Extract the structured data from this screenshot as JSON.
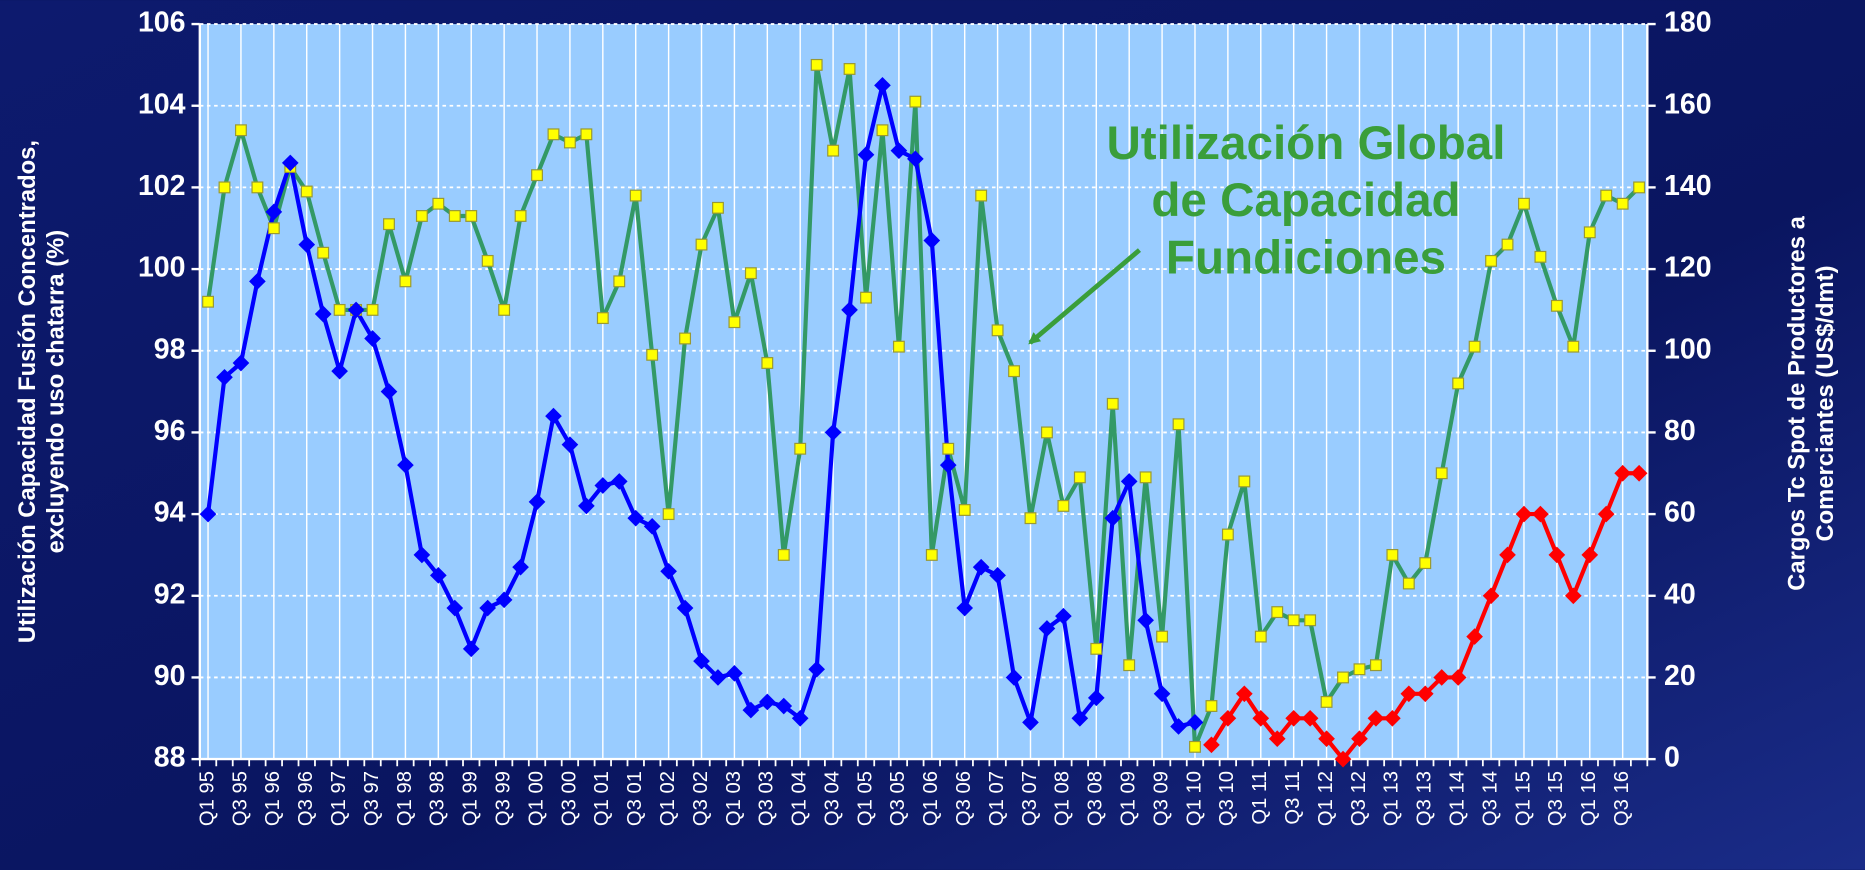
{
  "chart_data": {
    "type": "line",
    "categories": [
      "Q1 95",
      null,
      "Q3 95",
      null,
      "Q1 96",
      null,
      "Q3 96",
      null,
      "Q1 97",
      null,
      "Q3 97",
      null,
      "Q1 98",
      null,
      "Q3 98",
      null,
      "Q1 99",
      null,
      "Q3 99",
      null,
      "Q1 00",
      null,
      "Q3 00",
      null,
      "Q1 01",
      null,
      "Q3 01",
      null,
      "Q1 02",
      null,
      "Q3 02",
      null,
      "Q1 03",
      null,
      "Q3 03",
      null,
      "Q1 04",
      null,
      "Q3 04",
      null,
      "Q1 05",
      null,
      "Q3 05",
      null,
      "Q1 06",
      null,
      "Q3 06",
      null,
      "Q1 07",
      null,
      "Q3 07",
      null,
      "Q1 08",
      null,
      "Q3 08",
      null,
      "Q1 09",
      null,
      "Q3 09",
      null,
      "Q1 10",
      null,
      "Q3 10",
      null,
      "Q1 11",
      null,
      "Q3 11",
      null,
      "Q1 12",
      null,
      "Q3 12",
      null,
      "Q1 13",
      null,
      "Q3 13",
      null,
      "Q1 14",
      null,
      "Q3 14",
      null,
      "Q1 15",
      null,
      "Q3 15",
      null,
      "Q1 16",
      null,
      "Q3 16",
      null
    ],
    "series": [
      {
        "color": "#339966",
        "marker_color": "#ffff00",
        "marker": "square",
        "axis": "y",
        "values": [
          99.2,
          102.0,
          103.4,
          102.0,
          101.0,
          102.5,
          101.9,
          100.4,
          99.0,
          99.0,
          99.0,
          101.1,
          99.7,
          101.3,
          101.6,
          101.3,
          101.3,
          100.2,
          99.0,
          101.3,
          102.3,
          103.3,
          103.1,
          103.3,
          98.8,
          99.7,
          101.8,
          97.9,
          94.0,
          98.3,
          100.6,
          101.5,
          98.7,
          99.9,
          97.7,
          93.0,
          95.6,
          105.0,
          102.9,
          104.9,
          99.3,
          103.4,
          98.1,
          104.1,
          93.0,
          95.6,
          94.1,
          101.8,
          98.5,
          97.5,
          93.9,
          96.0,
          94.2,
          94.9,
          90.7,
          96.7,
          90.3,
          94.9,
          91.0,
          96.2,
          88.3,
          89.3,
          93.5,
          94.8,
          91.0,
          91.6,
          91.4,
          91.4,
          89.4,
          90.0,
          90.2,
          90.3,
          93.0,
          92.3,
          92.8,
          95.0,
          97.2,
          98.1,
          100.2,
          100.6,
          101.6,
          100.3,
          99.1,
          98.1,
          100.9,
          101.8,
          101.6,
          102.0
        ]
      },
      {
        "color": "#0000ff",
        "marker": "diamond",
        "axis": "y2",
        "values": [
          60,
          93.5,
          97,
          117,
          134,
          146,
          126,
          109,
          95,
          110,
          103,
          90,
          72,
          50,
          45,
          37,
          27,
          37,
          39,
          47,
          63,
          84,
          77,
          62,
          67,
          68,
          59,
          57,
          46,
          37,
          24,
          20,
          21,
          12,
          14,
          13,
          10,
          22,
          80,
          110,
          148,
          165,
          149,
          147,
          127,
          72,
          37,
          47,
          45,
          20,
          9,
          32,
          35,
          10,
          15,
          59,
          68,
          34,
          16,
          8,
          9,
          null,
          null,
          null,
          null,
          null,
          null,
          null,
          null,
          null,
          null,
          null,
          null,
          null,
          null,
          null,
          null,
          null,
          null,
          null,
          null,
          null,
          null,
          null,
          null,
          null,
          null,
          null
        ]
      },
      {
        "color": "#ff0000",
        "marker": "diamond",
        "axis": "y2",
        "values": [
          null,
          null,
          null,
          null,
          null,
          null,
          null,
          null,
          null,
          null,
          null,
          null,
          null,
          null,
          null,
          null,
          null,
          null,
          null,
          null,
          null,
          null,
          null,
          null,
          null,
          null,
          null,
          null,
          null,
          null,
          null,
          null,
          null,
          null,
          null,
          null,
          null,
          null,
          null,
          null,
          null,
          null,
          null,
          null,
          null,
          null,
          null,
          null,
          null,
          null,
          null,
          null,
          null,
          null,
          null,
          null,
          null,
          null,
          null,
          null,
          null,
          3.5,
          10,
          16,
          10,
          5,
          10,
          10,
          5,
          0,
          5,
          10,
          10,
          16,
          16,
          20,
          20,
          30,
          40,
          50,
          60,
          60,
          50,
          40,
          50,
          60,
          70,
          70
        ]
      }
    ],
    "ylabel": [
      "Utilización Capacidad Fusión Concentrados,",
      "excluyendo uso chatarra (%)"
    ],
    "y2label": [
      "Cargos Tc Spot de Productores a",
      "Comerciantes (US$/dmt)"
    ],
    "annotation": {
      "lines": [
        "Utilización Global",
        "de Capacidad",
        "Fundiciones"
      ],
      "color": "#3a9e3a"
    },
    "ylim": [
      88,
      106
    ],
    "yticks": [
      88,
      90,
      92,
      94,
      96,
      98,
      100,
      102,
      104,
      106
    ],
    "y2lim": [
      0,
      180
    ],
    "y2ticks": [
      0,
      20,
      40,
      60,
      80,
      100,
      120,
      140,
      160,
      180
    ],
    "grid": true,
    "plot_background": "#99ccff"
  }
}
